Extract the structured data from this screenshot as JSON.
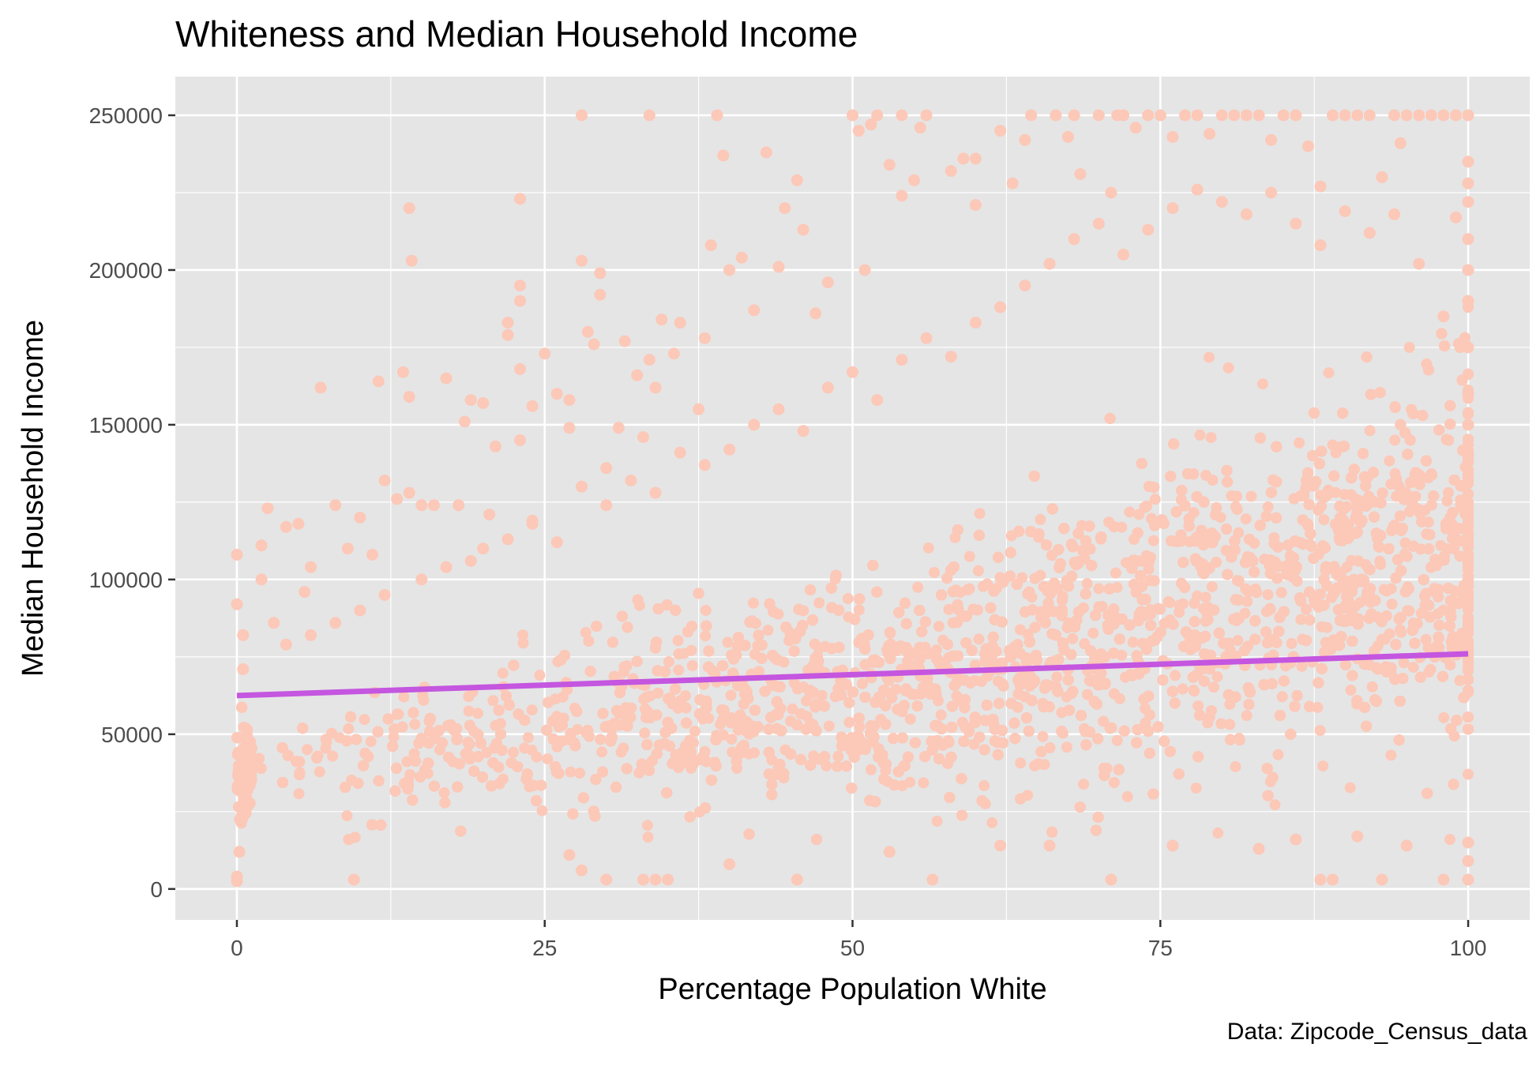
{
  "chart_data": {
    "type": "scatter",
    "title": "Whiteness and Median Household Income",
    "xlabel": "Percentage Population White",
    "ylabel": "Median Household Income",
    "caption": "Data: Zipcode_Census_data",
    "xlim": [
      -5,
      105
    ],
    "ylim": [
      -10000,
      262500
    ],
    "x_ticks": [
      0,
      25,
      50,
      75,
      100
    ],
    "x_tick_labels": [
      "0",
      "25",
      "50",
      "75",
      "100"
    ],
    "y_ticks": [
      0,
      50000,
      100000,
      150000,
      200000,
      250000
    ],
    "y_tick_labels": [
      "0",
      "50000",
      "100000",
      "150000",
      "200000",
      "250000"
    ],
    "grid": true,
    "legend": "none",
    "colors": {
      "panel": "#e5e5e5",
      "grid": "#ffffff",
      "points": "#fcc8b8",
      "trend": "#c456e0"
    },
    "series": [
      {
        "kind": "points",
        "points": [
          [
            0,
            108000
          ],
          [
            0,
            92000
          ],
          [
            0.5,
            82000
          ],
          [
            0.5,
            71000
          ],
          [
            0,
            4000
          ],
          [
            0,
            2500
          ],
          [
            0.2,
            12000
          ],
          [
            2,
            111000
          ],
          [
            2.5,
            123000
          ],
          [
            4,
            117000
          ],
          [
            5,
            118000
          ],
          [
            5.5,
            96000
          ],
          [
            6,
            104000
          ],
          [
            6.8,
            162000
          ],
          [
            8,
            124000
          ],
          [
            9,
            110000
          ],
          [
            9.5,
            3000
          ],
          [
            10,
            120000
          ],
          [
            11,
            108000
          ],
          [
            11.5,
            164000
          ],
          [
            12,
            132000
          ],
          [
            13,
            126000
          ],
          [
            13.5,
            167000
          ],
          [
            14,
            220000
          ],
          [
            14.2,
            203000
          ],
          [
            14,
            159000
          ],
          [
            14,
            128000
          ],
          [
            15,
            124000
          ],
          [
            16,
            124000
          ],
          [
            17,
            165000
          ],
          [
            18,
            124000
          ],
          [
            18.5,
            151000
          ],
          [
            19,
            158000
          ],
          [
            20,
            157000
          ],
          [
            20.5,
            121000
          ],
          [
            21,
            143000
          ],
          [
            22,
            183000
          ],
          [
            22,
            179000
          ],
          [
            23,
            223000
          ],
          [
            23,
            195000
          ],
          [
            23,
            190000
          ],
          [
            23,
            168000
          ],
          [
            23,
            145000
          ],
          [
            24,
            156000
          ],
          [
            24,
            118000
          ],
          [
            25,
            173000
          ],
          [
            26,
            160000
          ],
          [
            27,
            158000
          ],
          [
            27,
            149000
          ],
          [
            28,
            250000
          ],
          [
            28,
            203000
          ],
          [
            28.5,
            180000
          ],
          [
            29,
            176000
          ],
          [
            29.5,
            199000
          ],
          [
            29.5,
            192000
          ],
          [
            30,
            136000
          ],
          [
            31,
            149000
          ],
          [
            31.5,
            177000
          ],
          [
            32.5,
            166000
          ],
          [
            33,
            146000
          ],
          [
            33.5,
            250000
          ],
          [
            33.5,
            171000
          ],
          [
            34,
            162000
          ],
          [
            34.5,
            184000
          ],
          [
            35.5,
            173000
          ],
          [
            36,
            183000
          ],
          [
            37.5,
            155000
          ],
          [
            38,
            178000
          ],
          [
            38.5,
            208000
          ],
          [
            39,
            250000
          ],
          [
            39.5,
            237000
          ],
          [
            40,
            200000
          ],
          [
            41,
            204000
          ],
          [
            42,
            187000
          ],
          [
            43,
            238000
          ],
          [
            44,
            201000
          ],
          [
            44.5,
            220000
          ],
          [
            45.5,
            229000
          ],
          [
            46,
            213000
          ],
          [
            47,
            186000
          ],
          [
            48,
            196000
          ],
          [
            50,
            250000
          ],
          [
            50.5,
            245000
          ],
          [
            51,
            200000
          ],
          [
            51.5,
            247000
          ],
          [
            52,
            250000
          ],
          [
            53,
            234000
          ],
          [
            54,
            224000
          ],
          [
            54,
            250000
          ],
          [
            55,
            229000
          ],
          [
            55.5,
            246000
          ],
          [
            56,
            250000
          ],
          [
            58,
            232000
          ],
          [
            59,
            236000
          ],
          [
            60,
            236000
          ],
          [
            60,
            221000
          ],
          [
            62,
            245000
          ],
          [
            63,
            228000
          ],
          [
            64,
            242000
          ],
          [
            64.5,
            250000
          ],
          [
            66.5,
            250000
          ],
          [
            67.5,
            243000
          ],
          [
            68,
            250000
          ],
          [
            68.5,
            231000
          ],
          [
            70,
            250000
          ],
          [
            71,
            225000
          ],
          [
            71.5,
            250000
          ],
          [
            72,
            250000
          ],
          [
            73,
            246000
          ],
          [
            74,
            250000
          ],
          [
            75,
            250000
          ],
          [
            76,
            243000
          ],
          [
            77,
            250000
          ],
          [
            78,
            250000
          ],
          [
            79,
            244000
          ],
          [
            80,
            250000
          ],
          [
            81,
            250000
          ],
          [
            82,
            250000
          ],
          [
            83,
            250000
          ],
          [
            84,
            242000
          ],
          [
            85,
            250000
          ],
          [
            86,
            250000
          ],
          [
            87,
            240000
          ],
          [
            88,
            227000
          ],
          [
            89,
            250000
          ],
          [
            90,
            250000
          ],
          [
            91,
            250000
          ],
          [
            92,
            250000
          ],
          [
            93,
            230000
          ],
          [
            94,
            250000
          ],
          [
            94.5,
            241000
          ],
          [
            95,
            250000
          ],
          [
            96,
            250000
          ],
          [
            97,
            250000
          ],
          [
            98,
            250000
          ],
          [
            99,
            250000
          ],
          [
            100,
            250000
          ],
          [
            100,
            235000
          ],
          [
            100,
            228000
          ],
          [
            100,
            222000
          ],
          [
            100,
            210000
          ],
          [
            100,
            200000
          ],
          [
            100,
            190000
          ],
          [
            100,
            175000
          ],
          [
            100,
            160000
          ],
          [
            100,
            150000
          ],
          [
            100,
            140000
          ],
          [
            100,
            3000
          ],
          [
            100,
            9000
          ],
          [
            100,
            15000
          ],
          [
            98,
            3000
          ],
          [
            93,
            3000
          ],
          [
            89,
            3000
          ],
          [
            88,
            3000
          ],
          [
            71,
            3000
          ],
          [
            56.5,
            3000
          ],
          [
            45.5,
            3000
          ],
          [
            35,
            3000
          ],
          [
            34,
            3000
          ],
          [
            33,
            3000
          ],
          [
            30,
            3000
          ],
          [
            28,
            6000
          ],
          [
            27,
            11000
          ],
          [
            40,
            8000
          ],
          [
            53,
            12000
          ],
          [
            62,
            14000
          ],
          [
            66,
            14000
          ],
          [
            76,
            14000
          ],
          [
            83,
            13000
          ],
          [
            86,
            16000
          ],
          [
            91,
            17000
          ],
          [
            95,
            14000
          ],
          [
            2,
            100000
          ],
          [
            3,
            86000
          ],
          [
            4,
            79000
          ],
          [
            6,
            82000
          ],
          [
            8,
            86000
          ],
          [
            10,
            90000
          ],
          [
            12,
            95000
          ],
          [
            15,
            100000
          ],
          [
            17,
            104000
          ],
          [
            19,
            106000
          ],
          [
            20,
            110000
          ],
          [
            22,
            113000
          ],
          [
            24,
            119000
          ],
          [
            26,
            112000
          ],
          [
            28,
            130000
          ],
          [
            30,
            124000
          ],
          [
            32,
            132000
          ],
          [
            34,
            128000
          ],
          [
            36,
            141000
          ],
          [
            38,
            137000
          ],
          [
            40,
            142000
          ],
          [
            42,
            150000
          ],
          [
            44,
            155000
          ],
          [
            46,
            148000
          ],
          [
            48,
            162000
          ],
          [
            50,
            167000
          ],
          [
            52,
            158000
          ],
          [
            54,
            171000
          ],
          [
            56,
            178000
          ],
          [
            58,
            172000
          ],
          [
            60,
            183000
          ],
          [
            62,
            188000
          ],
          [
            64,
            195000
          ],
          [
            66,
            202000
          ],
          [
            68,
            210000
          ],
          [
            70,
            215000
          ],
          [
            72,
            205000
          ],
          [
            74,
            213000
          ],
          [
            76,
            220000
          ],
          [
            78,
            226000
          ],
          [
            80,
            222000
          ],
          [
            82,
            218000
          ],
          [
            84,
            225000
          ],
          [
            86,
            215000
          ],
          [
            88,
            208000
          ],
          [
            90,
            219000
          ],
          [
            92,
            212000
          ],
          [
            94,
            218000
          ],
          [
            96,
            202000
          ],
          [
            98,
            185000
          ],
          [
            99,
            217000
          ]
        ]
      },
      {
        "kind": "line",
        "name": "",
        "x": [
          0,
          100
        ],
        "y": [
          62500,
          76000
        ]
      }
    ]
  }
}
